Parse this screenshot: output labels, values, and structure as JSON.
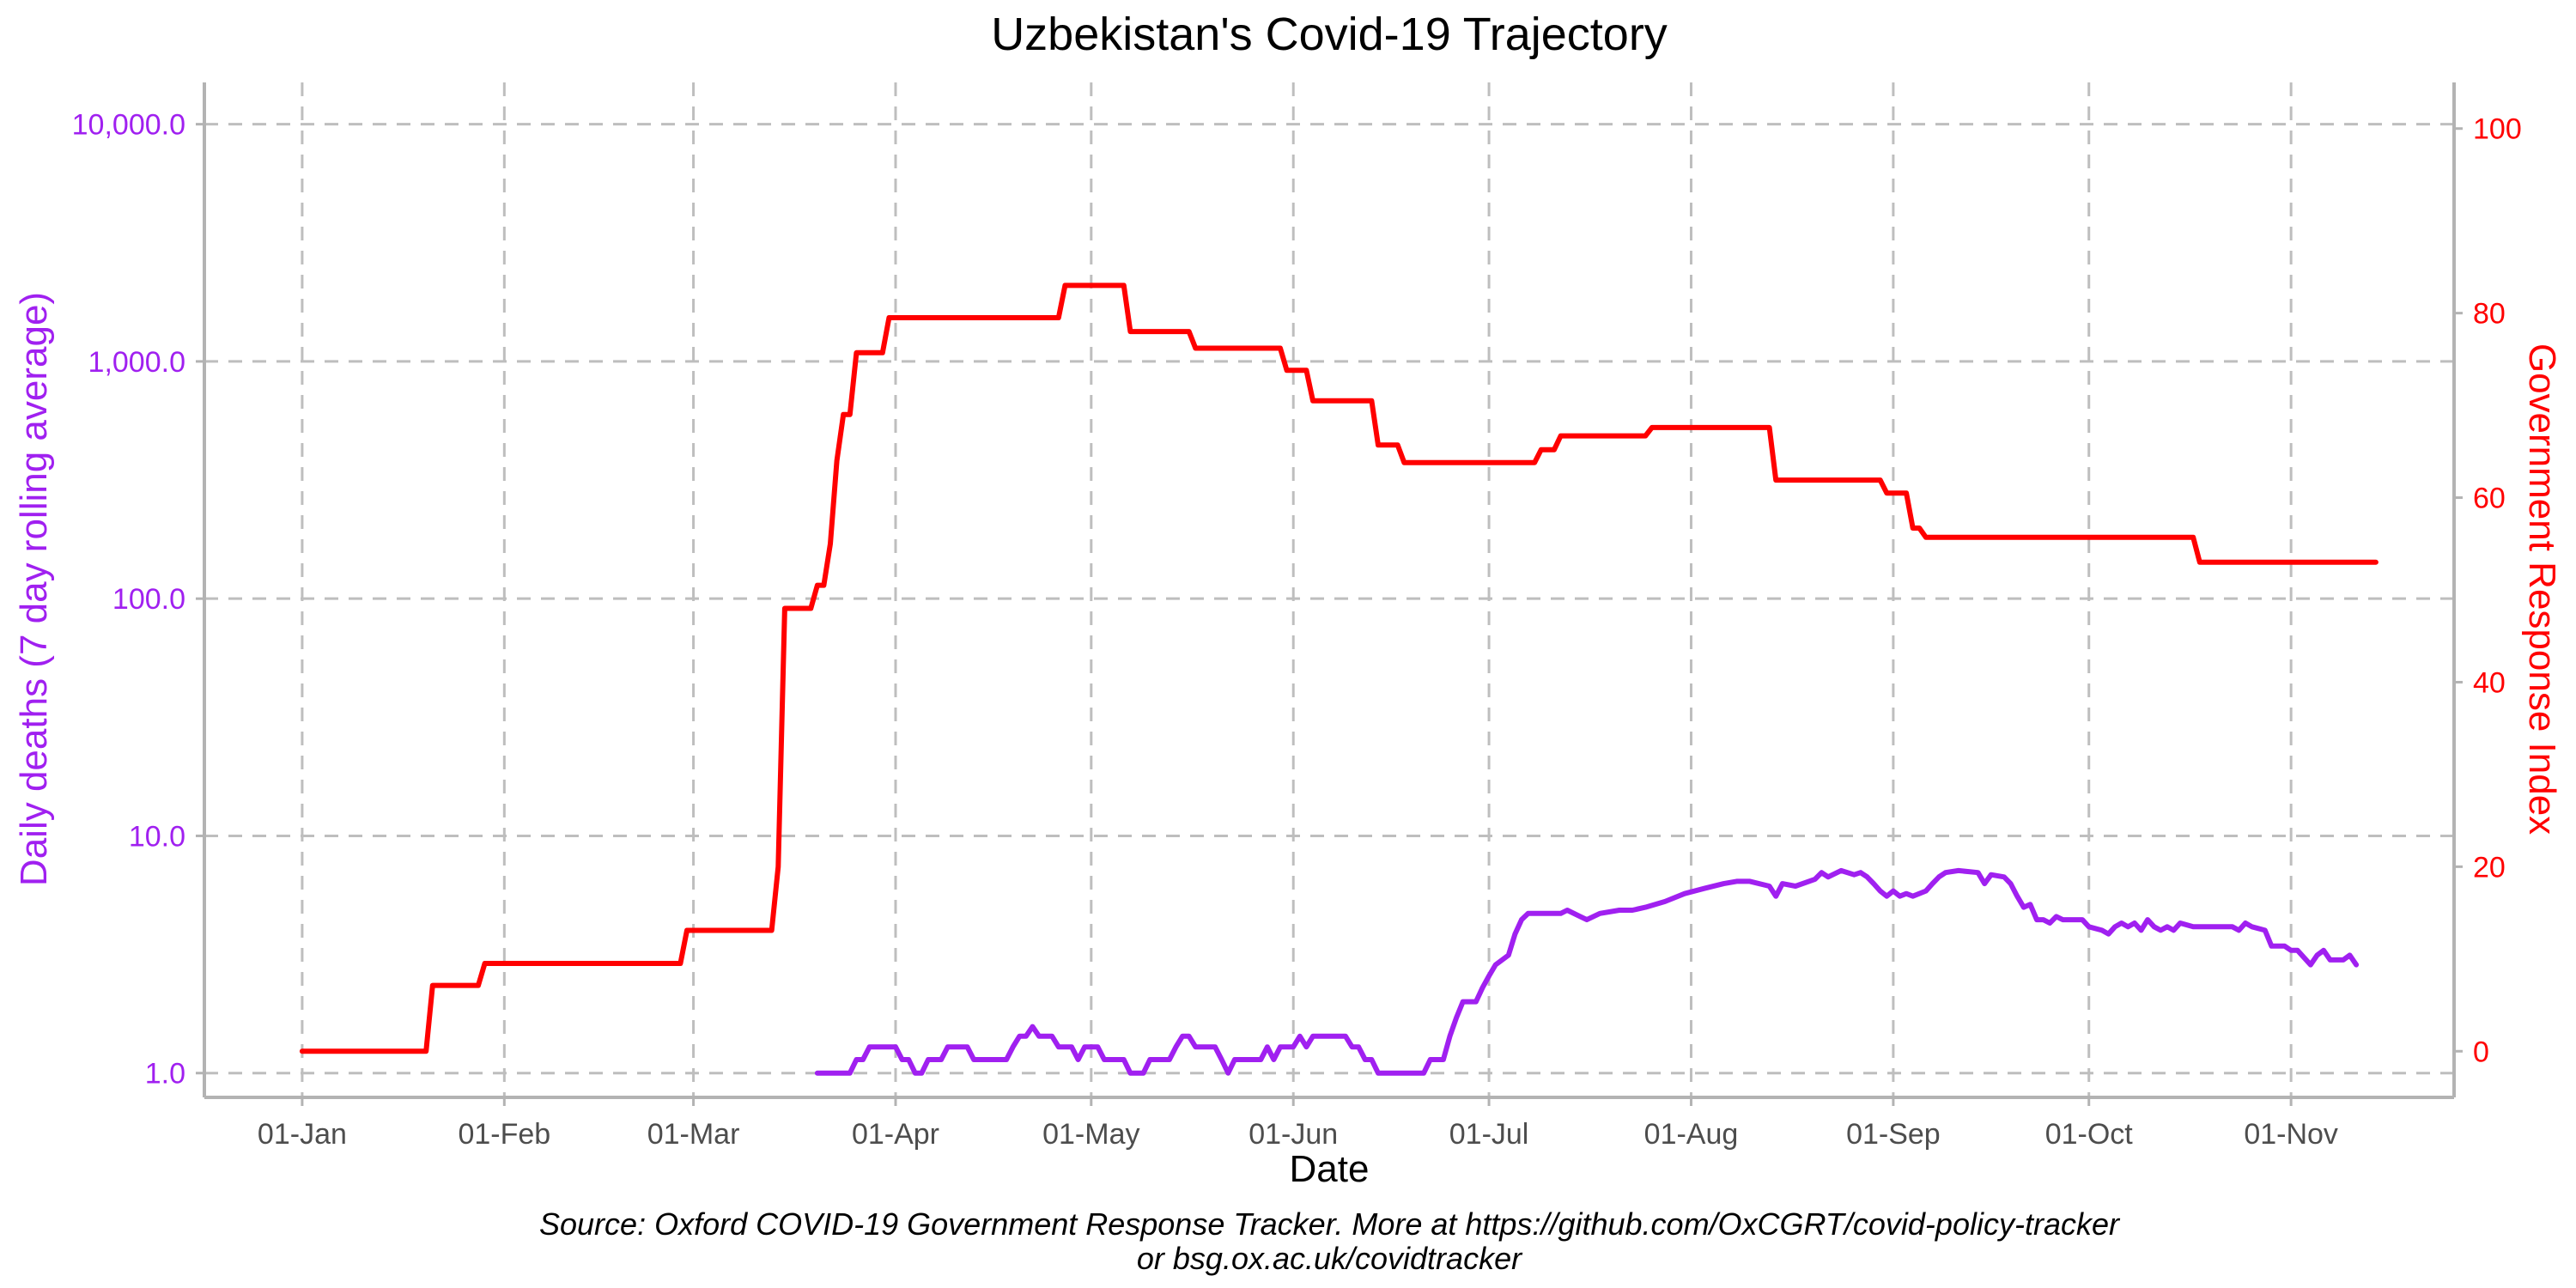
{
  "chart_data": {
    "type": "line",
    "title": "Uzbekistan's Covid-19 Trajectory",
    "xlabel": "Date",
    "ylabel_left": "Daily deaths (7 day rolling average)",
    "ylabel_right": "Government Response Index",
    "caption_line1": "Source: Oxford COVID-19 Government Response Tracker. More at https://github.com/OxCGRT/covid-policy-tracker",
    "caption_line2": "or bsg.ox.ac.uk/covidtracker",
    "x_domain": [
      "2019-12-17",
      "2020-11-26"
    ],
    "x_ticks": [
      {
        "date": "2020-01-01",
        "label": "01-Jan"
      },
      {
        "date": "2020-02-01",
        "label": "01-Feb"
      },
      {
        "date": "2020-03-01",
        "label": "01-Mar"
      },
      {
        "date": "2020-04-01",
        "label": "01-Apr"
      },
      {
        "date": "2020-05-01",
        "label": "01-May"
      },
      {
        "date": "2020-06-01",
        "label": "01-Jun"
      },
      {
        "date": "2020-07-01",
        "label": "01-Jul"
      },
      {
        "date": "2020-08-01",
        "label": "01-Aug"
      },
      {
        "date": "2020-09-01",
        "label": "01-Sep"
      },
      {
        "date": "2020-10-01",
        "label": "01-Oct"
      },
      {
        "date": "2020-11-01",
        "label": "01-Nov"
      }
    ],
    "y_left": {
      "scale": "log",
      "ylim": [
        0.79,
        15000
      ],
      "ticks": [
        {
          "value": 1,
          "label": "1.0"
        },
        {
          "value": 10,
          "label": "10.0"
        },
        {
          "value": 100,
          "label": "100.0"
        },
        {
          "value": 1000,
          "label": "1,000.0"
        },
        {
          "value": 10000,
          "label": "10,000.0"
        }
      ]
    },
    "y_right": {
      "scale": "linear",
      "ylim": [
        -5,
        105
      ],
      "ticks": [
        {
          "value": 0,
          "label": "0"
        },
        {
          "value": 20,
          "label": "20"
        },
        {
          "value": 40,
          "label": "40"
        },
        {
          "value": 60,
          "label": "60"
        },
        {
          "value": 80,
          "label": "80"
        },
        {
          "value": 100,
          "label": "100"
        }
      ]
    },
    "grid": true,
    "colors": {
      "deaths": "#a020f0",
      "response": "#ff0000",
      "grid": "#bebebe",
      "axis": "#b3b3b3"
    },
    "series": [
      {
        "axis": "right",
        "color": "#ff0000",
        "points": [
          [
            "2020-01-01",
            0
          ],
          [
            "2020-01-20",
            0
          ],
          [
            "2020-01-21",
            7.14
          ],
          [
            "2020-01-28",
            7.14
          ],
          [
            "2020-01-29",
            9.52
          ],
          [
            "2020-02-28",
            9.52
          ],
          [
            "2020-02-29",
            13.1
          ],
          [
            "2020-03-13",
            13.1
          ],
          [
            "2020-03-14",
            20.0
          ],
          [
            "2020-03-15",
            48.0
          ],
          [
            "2020-03-19",
            48.0
          ],
          [
            "2020-03-20",
            50.5
          ],
          [
            "2020-03-21",
            50.5
          ],
          [
            "2020-03-22",
            55.0
          ],
          [
            "2020-03-23",
            64.0
          ],
          [
            "2020-03-24",
            69.0
          ],
          [
            "2020-03-25",
            69.0
          ],
          [
            "2020-03-26",
            75.7
          ],
          [
            "2020-03-30",
            75.7
          ],
          [
            "2020-03-31",
            79.5
          ],
          [
            "2020-04-26",
            79.5
          ],
          [
            "2020-04-27",
            83.0
          ],
          [
            "2020-05-06",
            83.0
          ],
          [
            "2020-05-07",
            78.0
          ],
          [
            "2020-05-16",
            78.0
          ],
          [
            "2020-05-17",
            76.2
          ],
          [
            "2020-05-30",
            76.2
          ],
          [
            "2020-05-31",
            73.8
          ],
          [
            "2020-06-03",
            73.8
          ],
          [
            "2020-06-04",
            70.5
          ],
          [
            "2020-06-13",
            70.5
          ],
          [
            "2020-06-14",
            65.7
          ],
          [
            "2020-06-17",
            65.7
          ],
          [
            "2020-06-18",
            63.8
          ],
          [
            "2020-07-08",
            63.8
          ],
          [
            "2020-07-09",
            65.2
          ],
          [
            "2020-07-11",
            65.2
          ],
          [
            "2020-07-12",
            66.7
          ],
          [
            "2020-07-25",
            66.7
          ],
          [
            "2020-07-26",
            67.6
          ],
          [
            "2020-08-13",
            67.6
          ],
          [
            "2020-08-14",
            61.9
          ],
          [
            "2020-08-30",
            61.9
          ],
          [
            "2020-08-31",
            60.5
          ],
          [
            "2020-09-03",
            60.5
          ],
          [
            "2020-09-04",
            56.7
          ],
          [
            "2020-09-05",
            56.7
          ],
          [
            "2020-09-06",
            55.7
          ],
          [
            "2020-10-17",
            55.7
          ],
          [
            "2020-10-18",
            53.0
          ],
          [
            "2020-11-14",
            53.0
          ]
        ]
      },
      {
        "axis": "left",
        "color": "#a020f0",
        "points": [
          [
            "2020-03-20",
            1.0
          ],
          [
            "2020-03-25",
            1.0
          ],
          [
            "2020-03-26",
            1.14
          ],
          [
            "2020-03-27",
            1.14
          ],
          [
            "2020-03-28",
            1.29
          ],
          [
            "2020-04-01",
            1.29
          ],
          [
            "2020-04-02",
            1.14
          ],
          [
            "2020-04-03",
            1.14
          ],
          [
            "2020-04-04",
            1.0
          ],
          [
            "2020-04-05",
            1.0
          ],
          [
            "2020-04-06",
            1.14
          ],
          [
            "2020-04-08",
            1.14
          ],
          [
            "2020-04-09",
            1.29
          ],
          [
            "2020-04-12",
            1.29
          ],
          [
            "2020-04-13",
            1.14
          ],
          [
            "2020-04-18",
            1.14
          ],
          [
            "2020-04-19",
            1.29
          ],
          [
            "2020-04-20",
            1.43
          ],
          [
            "2020-04-21",
            1.43
          ],
          [
            "2020-04-22",
            1.57
          ],
          [
            "2020-04-23",
            1.43
          ],
          [
            "2020-04-25",
            1.43
          ],
          [
            "2020-04-26",
            1.29
          ],
          [
            "2020-04-28",
            1.29
          ],
          [
            "2020-04-29",
            1.14
          ],
          [
            "2020-04-30",
            1.29
          ],
          [
            "2020-05-02",
            1.29
          ],
          [
            "2020-05-03",
            1.14
          ],
          [
            "2020-05-06",
            1.14
          ],
          [
            "2020-05-07",
            1.0
          ],
          [
            "2020-05-09",
            1.0
          ],
          [
            "2020-05-10",
            1.14
          ],
          [
            "2020-05-13",
            1.14
          ],
          [
            "2020-05-14",
            1.29
          ],
          [
            "2020-05-15",
            1.43
          ],
          [
            "2020-05-16",
            1.43
          ],
          [
            "2020-05-17",
            1.29
          ],
          [
            "2020-05-20",
            1.29
          ],
          [
            "2020-05-21",
            1.14
          ],
          [
            "2020-05-22",
            1.0
          ],
          [
            "2020-05-23",
            1.14
          ],
          [
            "2020-05-27",
            1.14
          ],
          [
            "2020-05-28",
            1.29
          ],
          [
            "2020-05-29",
            1.14
          ],
          [
            "2020-05-30",
            1.29
          ],
          [
            "2020-06-01",
            1.29
          ],
          [
            "2020-06-02",
            1.43
          ],
          [
            "2020-06-03",
            1.29
          ],
          [
            "2020-06-04",
            1.43
          ],
          [
            "2020-06-09",
            1.43
          ],
          [
            "2020-06-10",
            1.29
          ],
          [
            "2020-06-11",
            1.29
          ],
          [
            "2020-06-12",
            1.14
          ],
          [
            "2020-06-13",
            1.14
          ],
          [
            "2020-06-14",
            1.0
          ],
          [
            "2020-06-21",
            1.0
          ],
          [
            "2020-06-22",
            1.14
          ],
          [
            "2020-06-24",
            1.14
          ],
          [
            "2020-06-25",
            1.43
          ],
          [
            "2020-06-26",
            1.71
          ],
          [
            "2020-06-27",
            2.0
          ],
          [
            "2020-06-29",
            2.0
          ],
          [
            "2020-06-30",
            2.29
          ],
          [
            "2020-07-01",
            2.57
          ],
          [
            "2020-07-02",
            2.86
          ],
          [
            "2020-07-04",
            3.14
          ],
          [
            "2020-07-05",
            3.86
          ],
          [
            "2020-07-06",
            4.43
          ],
          [
            "2020-07-07",
            4.71
          ],
          [
            "2020-07-12",
            4.71
          ],
          [
            "2020-07-13",
            4.86
          ],
          [
            "2020-07-15",
            4.57
          ],
          [
            "2020-07-16",
            4.43
          ],
          [
            "2020-07-18",
            4.71
          ],
          [
            "2020-07-21",
            4.86
          ],
          [
            "2020-07-23",
            4.86
          ],
          [
            "2020-07-25",
            5.0
          ],
          [
            "2020-07-28",
            5.29
          ],
          [
            "2020-07-31",
            5.71
          ],
          [
            "2020-08-03",
            6.0
          ],
          [
            "2020-08-06",
            6.29
          ],
          [
            "2020-08-08",
            6.43
          ],
          [
            "2020-08-10",
            6.43
          ],
          [
            "2020-08-13",
            6.14
          ],
          [
            "2020-08-14",
            5.57
          ],
          [
            "2020-08-15",
            6.29
          ],
          [
            "2020-08-17",
            6.14
          ],
          [
            "2020-08-20",
            6.57
          ],
          [
            "2020-08-21",
            7.0
          ],
          [
            "2020-08-22",
            6.71
          ],
          [
            "2020-08-24",
            7.14
          ],
          [
            "2020-08-26",
            6.86
          ],
          [
            "2020-08-27",
            7.0
          ],
          [
            "2020-08-28",
            6.71
          ],
          [
            "2020-08-29",
            6.29
          ],
          [
            "2020-08-30",
            5.86
          ],
          [
            "2020-08-31",
            5.57
          ],
          [
            "2020-09-01",
            5.86
          ],
          [
            "2020-09-02",
            5.57
          ],
          [
            "2020-09-03",
            5.71
          ],
          [
            "2020-09-04",
            5.57
          ],
          [
            "2020-09-06",
            5.86
          ],
          [
            "2020-09-07",
            6.29
          ],
          [
            "2020-09-08",
            6.71
          ],
          [
            "2020-09-09",
            7.0
          ],
          [
            "2020-09-11",
            7.14
          ],
          [
            "2020-09-14",
            7.0
          ],
          [
            "2020-09-15",
            6.29
          ],
          [
            "2020-09-16",
            6.86
          ],
          [
            "2020-09-18",
            6.71
          ],
          [
            "2020-09-19",
            6.29
          ],
          [
            "2020-09-20",
            5.57
          ],
          [
            "2020-09-21",
            5.0
          ],
          [
            "2020-09-22",
            5.14
          ],
          [
            "2020-09-23",
            4.43
          ],
          [
            "2020-09-24",
            4.43
          ],
          [
            "2020-09-25",
            4.29
          ],
          [
            "2020-09-26",
            4.57
          ],
          [
            "2020-09-27",
            4.43
          ],
          [
            "2020-09-30",
            4.43
          ],
          [
            "2020-10-01",
            4.14
          ],
          [
            "2020-10-03",
            4.0
          ],
          [
            "2020-10-04",
            3.86
          ],
          [
            "2020-10-05",
            4.14
          ],
          [
            "2020-10-06",
            4.29
          ],
          [
            "2020-10-07",
            4.14
          ],
          [
            "2020-10-08",
            4.29
          ],
          [
            "2020-10-09",
            4.0
          ],
          [
            "2020-10-10",
            4.43
          ],
          [
            "2020-10-11",
            4.14
          ],
          [
            "2020-10-12",
            4.0
          ],
          [
            "2020-10-13",
            4.14
          ],
          [
            "2020-10-14",
            4.0
          ],
          [
            "2020-10-15",
            4.29
          ],
          [
            "2020-10-17",
            4.14
          ],
          [
            "2020-10-23",
            4.14
          ],
          [
            "2020-10-24",
            4.0
          ],
          [
            "2020-10-25",
            4.29
          ],
          [
            "2020-10-26",
            4.14
          ],
          [
            "2020-10-28",
            4.0
          ],
          [
            "2020-10-29",
            3.43
          ],
          [
            "2020-10-31",
            3.43
          ],
          [
            "2020-11-01",
            3.29
          ],
          [
            "2020-11-02",
            3.29
          ],
          [
            "2020-11-04",
            2.86
          ],
          [
            "2020-11-05",
            3.14
          ],
          [
            "2020-11-06",
            3.29
          ],
          [
            "2020-11-07",
            3.0
          ],
          [
            "2020-11-09",
            3.0
          ],
          [
            "2020-11-10",
            3.14
          ],
          [
            "2020-11-11",
            2.86
          ]
        ]
      }
    ]
  }
}
